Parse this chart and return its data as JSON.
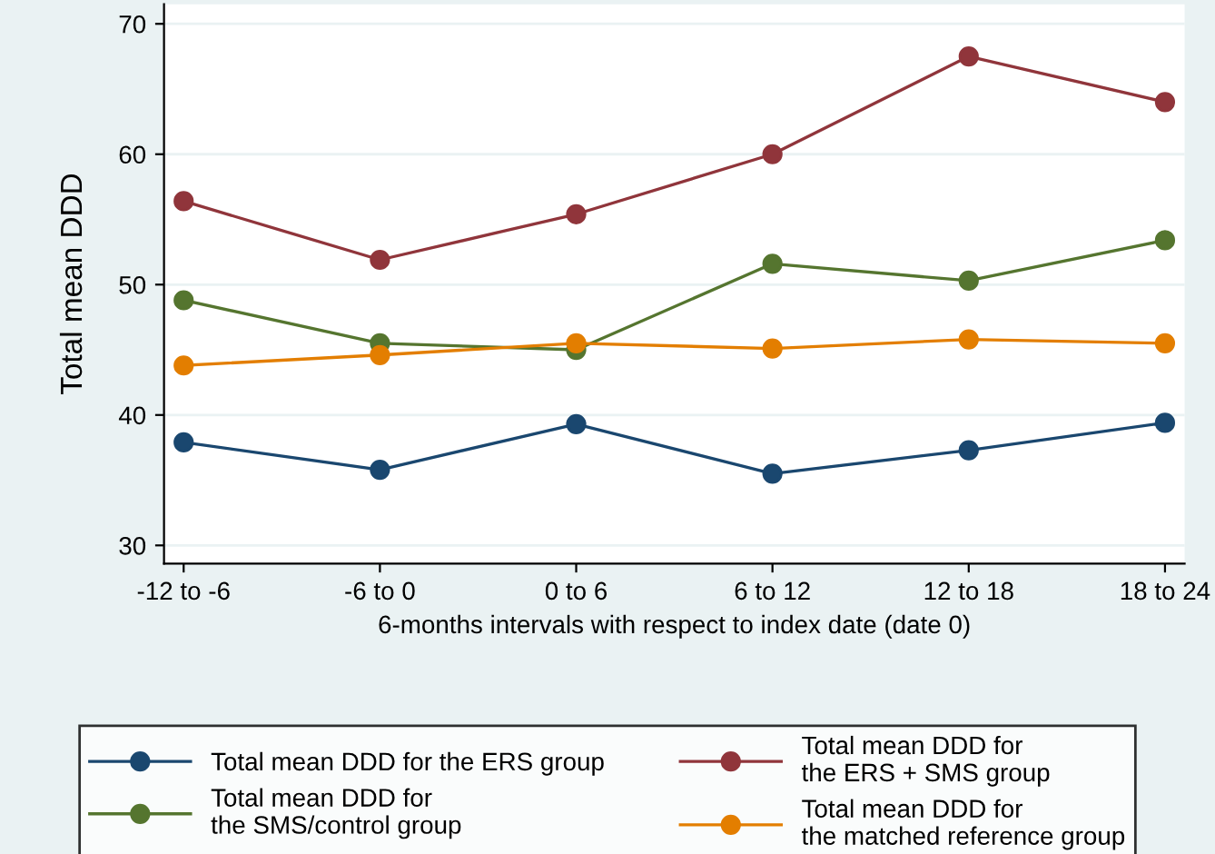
{
  "chart_data": {
    "type": "line",
    "xlabel": "6-months intervals with respect to index date (date 0)",
    "ylabel": "Total mean DDD",
    "categories": [
      "-12 to -6",
      "-6 to 0",
      "0 to 6",
      "6 to 12",
      "12 to 18",
      "18 to 24"
    ],
    "series": [
      {
        "name": "Total mean DDD for the ERS group",
        "color": "#1a476f",
        "values": [
          37.9,
          35.8,
          39.3,
          35.5,
          37.3,
          39.4
        ]
      },
      {
        "name": "Total mean DDD for\nthe ERS + SMS group",
        "color": "#90353b",
        "values": [
          56.4,
          51.9,
          55.4,
          60.0,
          67.5,
          64.0
        ]
      },
      {
        "name": "Total mean DDD for\nthe SMS/control group",
        "color": "#55752f",
        "values": [
          48.8,
          45.5,
          45.0,
          51.6,
          50.3,
          53.4
        ]
      },
      {
        "name": "Total mean DDD for\nthe matched reference group",
        "color": "#e37e00",
        "values": [
          43.8,
          44.6,
          45.5,
          45.1,
          45.8,
          45.5
        ]
      }
    ],
    "ylim": [
      28.6,
      71.5
    ],
    "yticks": [
      30,
      40,
      50,
      60,
      70
    ],
    "grid": "y",
    "legend": "bottom",
    "marker": "circle",
    "line_style": "solid"
  }
}
